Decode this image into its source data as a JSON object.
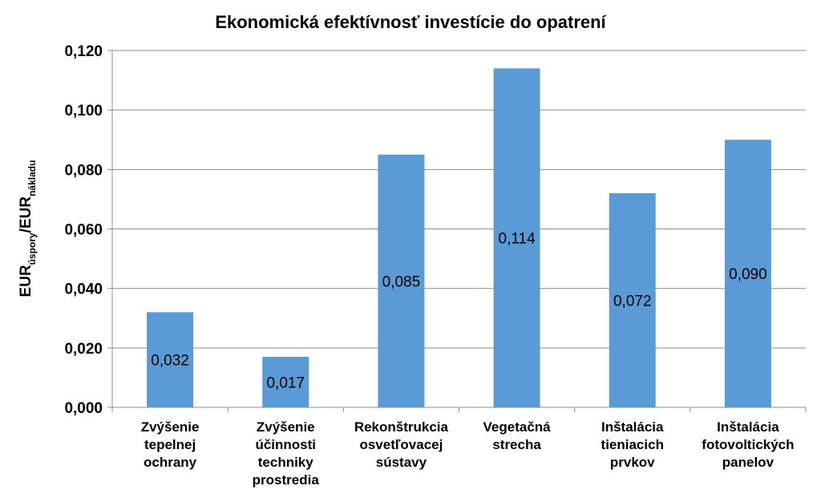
{
  "chart_data": {
    "type": "bar",
    "title": "Ekonomická efektívnosť investície do opatrení",
    "ylabel": {
      "main1": "EUR",
      "sub1": "úspory",
      "main2": "/EUR",
      "sub2": "nákladu"
    },
    "xlabel": "",
    "ylim": [
      0,
      0.12
    ],
    "yticks": [
      0,
      0.02,
      0.04,
      0.06,
      0.08,
      0.1,
      0.12
    ],
    "ytick_labels": [
      "0,000",
      "0,020",
      "0,040",
      "0,060",
      "0,080",
      "0,100",
      "0,120"
    ],
    "grid": true,
    "legend": "none",
    "bar_color": "#5B9BD5",
    "categories": [
      [
        "Zvýšenie",
        "tepelnej",
        "ochrany"
      ],
      [
        "Zvýšenie",
        "účinnosti",
        "techniky",
        "prostredia"
      ],
      [
        "Rekonštrukcia",
        "osvetľovacej",
        "sústavy"
      ],
      [
        "Vegetačná",
        "strecha"
      ],
      [
        "Inštalácia",
        "tieniacich",
        "prvkov"
      ],
      [
        "Inštalácia",
        "fotovoltických",
        "panelov"
      ]
    ],
    "values": [
      0.032,
      0.017,
      0.085,
      0.114,
      0.072,
      0.09
    ],
    "data_labels": [
      "0,032",
      "0,017",
      "0,085",
      "0,114",
      "0,072",
      "0,090"
    ]
  }
}
